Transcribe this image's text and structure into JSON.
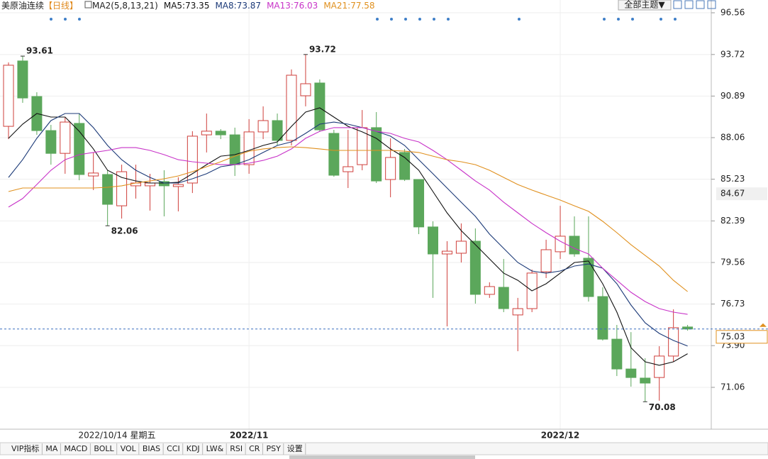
{
  "header": {
    "instrument": "美原油连续",
    "period": "【日线】",
    "indicator": "MA2(5,8,13,21)",
    "theme_button": "全部主题▼"
  },
  "chart_data": {
    "type": "candlestick",
    "categories": [
      null,
      null,
      null,
      null,
      null,
      null,
      null,
      null,
      null,
      null,
      null,
      null,
      null,
      null,
      null,
      null,
      null,
      "2022/11",
      null,
      null,
      null,
      null,
      null,
      null,
      null,
      null,
      null,
      null,
      null,
      null,
      null,
      null,
      null,
      null,
      null,
      null,
      null,
      null,
      null,
      "2022/12",
      null,
      null,
      null,
      null,
      null,
      null,
      null,
      null,
      null
    ],
    "cursor_label": "2022/10/14 星期五",
    "open": [
      88.83,
      93.28,
      90.86,
      88.54,
      86.99,
      89.03,
      85.45,
      85.55,
      83.42,
      84.78,
      84.78,
      85.07,
      84.73,
      84.97,
      88.25,
      88.5,
      88.25,
      86.22,
      88.45,
      89.22,
      87.87,
      90.91,
      91.78,
      88.35,
      85.74,
      86.22,
      88.74,
      85.21,
      87.05,
      85.21,
      81.98,
      80.14,
      80.19,
      81.01,
      77.39,
      77.87,
      75.99,
      76.42,
      78.93,
      80.29,
      81.35,
      79.85,
      77.24,
      74.34,
      72.31,
      71.69,
      71.73,
      73.19,
      75.17
    ],
    "high": [
      93.18,
      93.61,
      91.15,
      88.93,
      89.46,
      89.7,
      87.05,
      85.84,
      86.22,
      86.22,
      85.6,
      85.84,
      85.36,
      88.5,
      89.7,
      88.64,
      88.74,
      89.32,
      90.19,
      89.7,
      92.7,
      93.72,
      92.02,
      88.59,
      88.59,
      89.94,
      89.8,
      88.01,
      87.29,
      85.21,
      82.36,
      81.01,
      82.22,
      81.88,
      78.21,
      79.8,
      77.15,
      79.08,
      81.11,
      83.42,
      82.7,
      82.7,
      77.87,
      75.31,
      74.82,
      73.04,
      73.86,
      76.37,
      75.31
    ],
    "low": [
      87.96,
      90.43,
      88.25,
      86.22,
      85.6,
      85.16,
      84.49,
      82.06,
      82.55,
      83.91,
      83.09,
      82.7,
      83.04,
      84.29,
      87.05,
      87.96,
      85.45,
      85.6,
      87.96,
      87.53,
      87.53,
      90.19,
      88.45,
      85.4,
      84.63,
      85.84,
      84.97,
      84.0,
      85.11,
      81.49,
      77.15,
      75.21,
      79.56,
      76.76,
      77.15,
      76.18,
      73.52,
      76.18,
      78.5,
      79.8,
      79.95,
      76.9,
      74.25,
      71.83,
      71.11,
      70.08,
      70.15,
      72.8,
      74.92
    ],
    "close": [
      92.99,
      90.76,
      88.54,
      86.99,
      89.12,
      85.55,
      85.65,
      83.52,
      85.74,
      84.97,
      84.97,
      84.78,
      84.87,
      88.16,
      88.5,
      88.25,
      86.22,
      88.45,
      89.22,
      87.87,
      92.31,
      91.73,
      88.59,
      85.5,
      86.08,
      88.74,
      85.11,
      86.71,
      85.21,
      81.98,
      80.14,
      80.33,
      81.01,
      77.39,
      77.92,
      76.42,
      76.42,
      78.84,
      80.43,
      81.35,
      80.14,
      77.24,
      74.34,
      72.31,
      71.73,
      71.35,
      73.19,
      75.12,
      75.03
    ],
    "up_color": "#cf3f3b",
    "down_color": "#5ba75b",
    "legend_separator": ":",
    "series": [
      {
        "name": "MA5",
        "color": "#111111",
        "values": [
          88.01,
          88.98,
          89.7,
          89.46,
          89.46,
          88.49,
          87.29,
          85.84,
          85.35,
          85.11,
          84.97,
          84.97,
          85.02,
          85.6,
          86.22,
          86.8,
          86.9,
          87.19,
          87.53,
          87.77,
          88.83,
          89.8,
          90.09,
          89.46,
          88.83,
          88.45,
          88.01,
          87.29,
          86.71,
          85.84,
          84.39,
          82.94,
          81.73,
          80.77,
          79.8,
          78.83,
          78.35,
          77.63,
          78.11,
          78.83,
          79.56,
          79.66,
          78.11,
          76.18,
          73.76,
          72.8,
          72.56,
          72.8,
          73.35
        ]
      },
      {
        "name": "MA8",
        "color": "#1c3a78",
        "values": [
          85.35,
          86.56,
          88.01,
          89.22,
          89.7,
          89.7,
          88.74,
          87.53,
          86.56,
          85.84,
          85.35,
          84.97,
          84.97,
          85.26,
          85.6,
          86.08,
          86.22,
          86.56,
          87.05,
          87.53,
          87.77,
          88.35,
          88.98,
          89.12,
          88.98,
          88.74,
          88.49,
          88.16,
          87.53,
          86.56,
          85.6,
          84.63,
          83.66,
          82.7,
          81.49,
          80.52,
          79.56,
          78.98,
          78.83,
          78.98,
          79.32,
          79.46,
          79.17,
          78.11,
          76.66,
          75.45,
          74.73,
          74.25,
          73.87
        ]
      },
      {
        "name": "MA13",
        "color": "#c833c8",
        "values": [
          83.33,
          83.91,
          84.87,
          85.84,
          86.56,
          86.9,
          87.05,
          87.19,
          87.38,
          87.38,
          87.19,
          86.9,
          86.56,
          86.42,
          86.32,
          86.22,
          86.22,
          86.32,
          86.51,
          86.8,
          87.29,
          88.01,
          88.49,
          88.74,
          88.74,
          88.74,
          88.49,
          88.35,
          88.01,
          87.77,
          87.19,
          86.56,
          85.84,
          85.11,
          84.49,
          83.66,
          82.94,
          82.22,
          81.59,
          81.01,
          80.52,
          80.14,
          79.17,
          78.35,
          77.53,
          76.9,
          76.42,
          76.18,
          76.03
        ]
      },
      {
        "name": "MA21",
        "color": "#e0901e",
        "values": [
          84.39,
          84.63,
          84.63,
          84.63,
          84.63,
          84.63,
          84.63,
          84.68,
          84.78,
          84.97,
          85.11,
          85.26,
          85.45,
          85.74,
          86.08,
          86.42,
          86.8,
          87.14,
          87.29,
          87.38,
          87.43,
          87.38,
          87.29,
          87.19,
          87.19,
          87.19,
          87.19,
          87.19,
          87.14,
          87.05,
          86.8,
          86.56,
          86.42,
          86.22,
          85.84,
          85.35,
          84.87,
          84.49,
          84.15,
          83.81,
          83.42,
          83.04,
          82.36,
          81.59,
          80.77,
          80.04,
          79.32,
          78.35,
          77.58
        ]
      }
    ],
    "ylim": [
      68.21,
      97.43
    ],
    "yticks": [
      71.06,
      {
        "value": 73.9,
        "label": "73.90"
      },
      76.73,
      79.56,
      82.39,
      85.23,
      88.06,
      90.89,
      93.72,
      96.56
    ],
    "last_price": 75.03,
    "marked_price": 84.67,
    "grid": true
  },
  "toolbar": {
    "tabs": [
      "VIP指标",
      "MA",
      "MACD",
      "BOLL",
      "VOL",
      "BIAS",
      "CCI",
      "KDJ",
      "LW&",
      "RSI",
      "CR",
      "PSY",
      "设置"
    ]
  }
}
